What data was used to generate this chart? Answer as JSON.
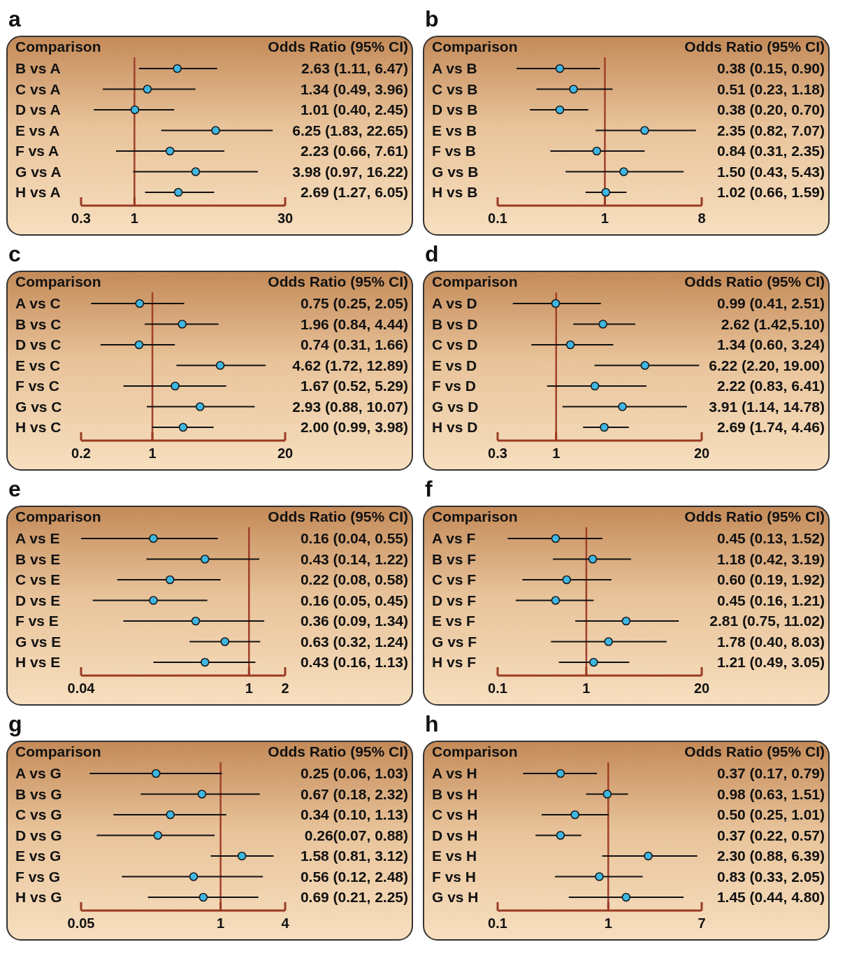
{
  "chart_data": [
    {
      "type": "scatter",
      "title": "a",
      "ylabel": "Comparison",
      "xlabel": "Odds Ratio (95% CI)",
      "orientation": "horizontal",
      "log": "x",
      "marker": "circle",
      "color": "#3fb7e3",
      "xlim": [
        0.3,
        30
      ],
      "xticks": [
        0.3,
        1,
        30
      ],
      "ref_lines": [
        {
          "axis": "x",
          "value": 1,
          "color": "#a0402a"
        }
      ],
      "categories": [
        "B vs A",
        "C vs A",
        "D vs A",
        "E vs A",
        "F vs A",
        "G vs A",
        "H vs A"
      ],
      "values": [
        2.63,
        1.34,
        1.01,
        6.25,
        2.23,
        3.98,
        2.69
      ],
      "errors": [
        [
          1.11,
          6.47
        ],
        [
          0.49,
          3.96
        ],
        [
          0.4,
          2.45
        ],
        [
          1.83,
          22.65
        ],
        [
          0.66,
          7.61
        ],
        [
          0.97,
          16.22
        ],
        [
          1.27,
          6.05
        ]
      ],
      "value_labels": [
        "2.63 (1.11, 6.47)",
        "1.34 (0.49, 3.96)",
        "1.01 (0.40, 2.45)",
        "6.25 (1.83, 22.65)",
        "2.23 (0.66, 7.61)",
        "3.98 (0.97, 16.22)",
        "2.69 (1.27, 6.05)"
      ]
    },
    {
      "type": "scatter",
      "title": "b",
      "ylabel": "Comparison",
      "xlabel": "Odds Ratio (95% CI)",
      "orientation": "horizontal",
      "log": "x",
      "marker": "circle",
      "color": "#3fb7e3",
      "xlim": [
        0.1,
        8
      ],
      "xticks": [
        0.1,
        1,
        8
      ],
      "ref_lines": [
        {
          "axis": "x",
          "value": 1,
          "color": "#a0402a"
        }
      ],
      "categories": [
        "A vs B",
        "C vs B",
        "D vs B",
        "E vs B",
        "F vs B",
        "G vs B",
        "H vs B"
      ],
      "values": [
        0.38,
        0.51,
        0.38,
        2.35,
        0.84,
        1.5,
        1.02
      ],
      "errors": [
        [
          0.15,
          0.9
        ],
        [
          0.23,
          1.18
        ],
        [
          0.2,
          0.7
        ],
        [
          0.82,
          7.07
        ],
        [
          0.31,
          2.35
        ],
        [
          0.43,
          5.43
        ],
        [
          0.66,
          1.59
        ]
      ],
      "value_labels": [
        "0.38 (0.15, 0.90)",
        "0.51 (0.23, 1.18)",
        "0.38 (0.20, 0.70)",
        "2.35 (0.82, 7.07)",
        "0.84 (0.31, 2.35)",
        "1.50 (0.43, 5.43)",
        "1.02 (0.66, 1.59)"
      ]
    },
    {
      "type": "scatter",
      "title": "c",
      "ylabel": "Comparison",
      "xlabel": "Odds Ratio (95% CI)",
      "orientation": "horizontal",
      "log": "x",
      "marker": "circle",
      "color": "#3fb7e3",
      "xlim": [
        0.2,
        20
      ],
      "xticks": [
        0.2,
        1,
        20
      ],
      "ref_lines": [
        {
          "axis": "x",
          "value": 1,
          "color": "#a0402a"
        }
      ],
      "categories": [
        "A vs C",
        "B vs C",
        "D vs C",
        "E vs C",
        "F vs C",
        "G vs C",
        "H vs C"
      ],
      "values": [
        0.75,
        1.96,
        0.74,
        4.62,
        1.67,
        2.93,
        2.0
      ],
      "errors": [
        [
          0.25,
          2.05
        ],
        [
          0.84,
          4.44
        ],
        [
          0.31,
          1.66
        ],
        [
          1.72,
          12.89
        ],
        [
          0.52,
          5.29
        ],
        [
          0.88,
          10.07
        ],
        [
          0.99,
          3.98
        ]
      ],
      "value_labels": [
        "0.75 (0.25, 2.05)",
        "1.96 (0.84, 4.44)",
        "0.74 (0.31, 1.66)",
        "4.62 (1.72, 12.89)",
        "1.67 (0.52, 5.29)",
        "2.93 (0.88, 10.07)",
        "2.00 (0.99, 3.98)"
      ]
    },
    {
      "type": "scatter",
      "title": "d",
      "ylabel": "Comparison",
      "xlabel": "Odds Ratio (95% CI)",
      "orientation": "horizontal",
      "log": "x",
      "marker": "circle",
      "color": "#3fb7e3",
      "xlim": [
        0.3,
        20
      ],
      "xticks": [
        0.3,
        1,
        20
      ],
      "ref_lines": [
        {
          "axis": "x",
          "value": 1,
          "color": "#a0402a"
        }
      ],
      "categories": [
        "A vs D",
        "B vs D",
        "C vs D",
        "E vs D",
        "F vs D",
        "G vs D",
        "H vs D"
      ],
      "values": [
        0.99,
        2.62,
        1.34,
        6.22,
        2.22,
        3.91,
        2.69
      ],
      "errors": [
        [
          0.41,
          2.51
        ],
        [
          1.42,
          5.1
        ],
        [
          0.6,
          3.24
        ],
        [
          2.2,
          19.0
        ],
        [
          0.83,
          6.41
        ],
        [
          1.14,
          14.78
        ],
        [
          1.74,
          4.46
        ]
      ],
      "value_labels": [
        "0.99 (0.41, 2.51)",
        "2.62 (1.42,5.10)",
        "1.34 (0.60, 3.24)",
        "6.22 (2.20, 19.00)",
        "2.22 (0.83, 6.41)",
        "3.91 (1.14, 14.78)",
        "2.69 (1.74, 4.46)"
      ]
    },
    {
      "type": "scatter",
      "title": "e",
      "ylabel": "Comparison",
      "xlabel": "Odds Ratio (95% CI)",
      "orientation": "horizontal",
      "log": "x",
      "marker": "circle",
      "color": "#3fb7e3",
      "xlim": [
        0.04,
        2
      ],
      "xticks": [
        0.04,
        1,
        2
      ],
      "ref_lines": [
        {
          "axis": "x",
          "value": 1,
          "color": "#a0402a"
        }
      ],
      "categories": [
        "A vs E",
        "B vs E",
        "C vs E",
        "D vs E",
        "F vs E",
        "G vs E",
        "H vs E"
      ],
      "values": [
        0.16,
        0.43,
        0.22,
        0.16,
        0.36,
        0.63,
        0.43
      ],
      "errors": [
        [
          0.04,
          0.55
        ],
        [
          0.14,
          1.22
        ],
        [
          0.08,
          0.58
        ],
        [
          0.05,
          0.45
        ],
        [
          0.09,
          1.34
        ],
        [
          0.32,
          1.24
        ],
        [
          0.16,
          1.13
        ]
      ],
      "value_labels": [
        "0.16 (0.04, 0.55)",
        "0.43 (0.14, 1.22)",
        "0.22 (0.08, 0.58)",
        "0.16 (0.05, 0.45)",
        "0.36 (0.09, 1.34)",
        "0.63 (0.32, 1.24)",
        "0.43 (0.16, 1.13)"
      ]
    },
    {
      "type": "scatter",
      "title": "f",
      "ylabel": "Comparison",
      "xlabel": "Odds Ratio (95% CI)",
      "orientation": "horizontal",
      "log": "x",
      "marker": "circle",
      "color": "#3fb7e3",
      "xlim": [
        0.1,
        20
      ],
      "xticks": [
        0.1,
        1,
        20
      ],
      "ref_lines": [
        {
          "axis": "x",
          "value": 1,
          "color": "#a0402a"
        }
      ],
      "categories": [
        "A vs F",
        "B vs F",
        "C vs F",
        "D vs F",
        "E vs F",
        "G vs F",
        "H vs F"
      ],
      "values": [
        0.45,
        1.18,
        0.6,
        0.45,
        2.81,
        1.78,
        1.21
      ],
      "errors": [
        [
          0.13,
          1.52
        ],
        [
          0.42,
          3.19
        ],
        [
          0.19,
          1.92
        ],
        [
          0.16,
          1.21
        ],
        [
          0.75,
          11.02
        ],
        [
          0.4,
          8.03
        ],
        [
          0.49,
          3.05
        ]
      ],
      "value_labels": [
        "0.45 (0.13, 1.52)",
        "1.18 (0.42, 3.19)",
        "0.60 (0.19, 1.92)",
        "0.45 (0.16, 1.21)",
        "2.81 (0.75, 11.02)",
        "1.78 (0.40, 8.03)",
        "1.21 (0.49, 3.05)"
      ]
    },
    {
      "type": "scatter",
      "title": "g",
      "ylabel": "Comparison",
      "xlabel": "Odds Ratio (95% CI)",
      "orientation": "horizontal",
      "log": "x",
      "marker": "circle",
      "color": "#3fb7e3",
      "xlim": [
        0.05,
        4
      ],
      "xticks": [
        0.05,
        1,
        4
      ],
      "ref_lines": [
        {
          "axis": "x",
          "value": 1,
          "color": "#a0402a"
        }
      ],
      "categories": [
        "A vs G",
        "B vs G",
        "C vs G",
        "D vs G",
        "E vs G",
        "F vs G",
        "H vs G"
      ],
      "values": [
        0.25,
        0.67,
        0.34,
        0.26,
        1.58,
        0.56,
        0.69
      ],
      "errors": [
        [
          0.06,
          1.03
        ],
        [
          0.18,
          2.32
        ],
        [
          0.1,
          1.13
        ],
        [
          0.07,
          0.88
        ],
        [
          0.81,
          3.12
        ],
        [
          0.12,
          2.48
        ],
        [
          0.21,
          2.25
        ]
      ],
      "value_labels": [
        "0.25 (0.06, 1.03)",
        "0.67 (0.18, 2.32)",
        "0.34 (0.10, 1.13)",
        "0.26(0.07, 0.88)",
        "1.58 (0.81, 3.12)",
        "0.56 (0.12, 2.48)",
        "0.69 (0.21, 2.25)"
      ]
    },
    {
      "type": "scatter",
      "title": "h",
      "ylabel": "Comparison",
      "xlabel": "Odds Ratio (95% CI)",
      "orientation": "horizontal",
      "log": "x",
      "marker": "circle",
      "color": "#3fb7e3",
      "xlim": [
        0.1,
        7
      ],
      "xticks": [
        0.1,
        1,
        7
      ],
      "ref_lines": [
        {
          "axis": "x",
          "value": 1,
          "color": "#a0402a"
        }
      ],
      "categories": [
        "A vs H",
        "B vs H",
        "C vs H",
        "D vs H",
        "E vs H",
        "F vs H",
        "G vs H"
      ],
      "values": [
        0.37,
        0.98,
        0.5,
        0.37,
        2.3,
        0.83,
        1.45
      ],
      "errors": [
        [
          0.17,
          0.79
        ],
        [
          0.63,
          1.51
        ],
        [
          0.25,
          1.01
        ],
        [
          0.22,
          0.57
        ],
        [
          0.88,
          6.39
        ],
        [
          0.33,
          2.05
        ],
        [
          0.44,
          4.8
        ]
      ],
      "value_labels": [
        "0.37 (0.17, 0.79)",
        "0.98 (0.63, 1.51)",
        "0.50 (0.25, 1.01)",
        "0.37 (0.22, 0.57)",
        "2.30 (0.88, 6.39)",
        "0.83 (0.33, 2.05)",
        "1.45 (0.44, 4.80)"
      ]
    }
  ]
}
